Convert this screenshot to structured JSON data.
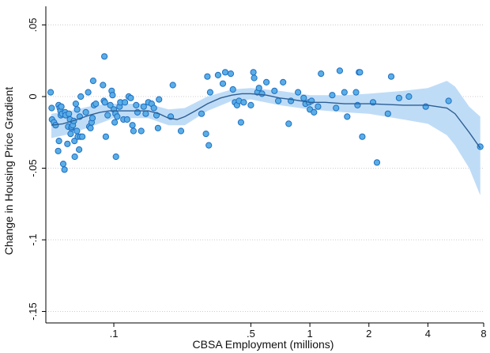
{
  "chart_data": {
    "type": "scatter",
    "xlabel": "CBSA Employment (millions)",
    "ylabel": "Change in Housing Price Gradient",
    "x_scale": "log",
    "xlim": [
      0.045,
      7.7
    ],
    "ylim": [
      -0.158,
      0.063
    ],
    "x_ticks": [
      {
        "value": 0.1,
        "label": ".1"
      },
      {
        "value": 0.5,
        "label": ".5"
      },
      {
        "value": 1,
        "label": "1"
      },
      {
        "value": 2,
        "label": "2"
      },
      {
        "value": 4,
        "label": "4"
      },
      {
        "value": 8,
        "label": "8"
      }
    ],
    "y_ticks": [
      {
        "value": 0.05,
        "label": ".05"
      },
      {
        "value": 0,
        "label": "0"
      },
      {
        "value": -0.05,
        "label": "-.05"
      },
      {
        "value": -0.1,
        "label": "-.1"
      },
      {
        "value": -0.15,
        "label": "-.15"
      }
    ],
    "grid": true,
    "legend": "none",
    "colors": {
      "points_fill": "#5aaee6",
      "points_stroke": "#1f6fc2",
      "fit_line": "#2e5f93",
      "ci_band": "#bfdcf7",
      "grid": "#cccccc",
      "axis": "#000000"
    },
    "points": [
      [
        0.0476,
        0.003
      ],
      [
        0.0482,
        -0.008
      ],
      [
        0.0484,
        -0.016
      ],
      [
        0.0495,
        -0.018
      ],
      [
        0.0505,
        -0.02
      ],
      [
        0.052,
        -0.038
      ],
      [
        0.0523,
        -0.006
      ],
      [
        0.0525,
        -0.031
      ],
      [
        0.053,
        -0.008
      ],
      [
        0.0535,
        -0.01
      ],
      [
        0.0537,
        -0.013
      ],
      [
        0.054,
        -0.007
      ],
      [
        0.0545,
        -0.012
      ],
      [
        0.0552,
        -0.047
      ],
      [
        0.056,
        -0.051
      ],
      [
        0.0565,
        -0.011
      ],
      [
        0.0568,
        -0.013
      ],
      [
        0.058,
        -0.033
      ],
      [
        0.0585,
        -0.021
      ],
      [
        0.059,
        -0.012
      ],
      [
        0.0598,
        -0.016
      ],
      [
        0.0602,
        -0.026
      ],
      [
        0.0608,
        -0.022
      ],
      [
        0.061,
        -0.021
      ],
      [
        0.0618,
        -0.02
      ],
      [
        0.0625,
        -0.017
      ],
      [
        0.063,
        -0.031
      ],
      [
        0.0632,
        -0.042
      ],
      [
        0.064,
        -0.005
      ],
      [
        0.0648,
        -0.024
      ],
      [
        0.065,
        -0.009
      ],
      [
        0.0655,
        -0.028
      ],
      [
        0.0665,
        -0.037
      ],
      [
        0.067,
        -0.014
      ],
      [
        0.0675,
        -0.028
      ],
      [
        0.0678,
        0.0
      ],
      [
        0.069,
        -0.028
      ],
      [
        0.072,
        -0.011
      ],
      [
        0.074,
        0.003
      ],
      [
        0.075,
        -0.021
      ],
      [
        0.076,
        -0.022
      ],
      [
        0.077,
        -0.018
      ],
      [
        0.0778,
        -0.015
      ],
      [
        0.0785,
        0.011
      ],
      [
        0.0792,
        -0.006
      ],
      [
        0.081,
        -0.005
      ],
      [
        0.088,
        0.008
      ],
      [
        0.089,
        -0.003
      ],
      [
        0.0895,
        0.028
      ],
      [
        0.09,
        -0.004
      ],
      [
        0.091,
        -0.028
      ],
      [
        0.093,
        -0.013
      ],
      [
        0.096,
        -0.006
      ],
      [
        0.0975,
        0.004
      ],
      [
        0.0985,
        0.001
      ],
      [
        0.1,
        -0.009
      ],
      [
        0.101,
        -0.018
      ],
      [
        0.102,
        -0.012
      ],
      [
        0.1025,
        -0.042
      ],
      [
        0.104,
        -0.014
      ],
      [
        0.107,
        -0.007
      ],
      [
        0.108,
        -0.004
      ],
      [
        0.112,
        -0.016
      ],
      [
        0.114,
        -0.004
      ],
      [
        0.117,
        -0.016
      ],
      [
        0.119,
        0.0
      ],
      [
        0.122,
        -0.001
      ],
      [
        0.1245,
        -0.02
      ],
      [
        0.126,
        -0.024
      ],
      [
        0.13,
        -0.006
      ],
      [
        0.132,
        -0.011
      ],
      [
        0.138,
        -0.024
      ],
      [
        0.142,
        -0.007
      ],
      [
        0.1455,
        -0.012
      ],
      [
        0.15,
        -0.004
      ],
      [
        0.156,
        -0.005
      ],
      [
        0.16,
        -0.008
      ],
      [
        0.165,
        -0.013
      ],
      [
        0.168,
        -0.022
      ],
      [
        0.17,
        -0.002
      ],
      [
        0.195,
        -0.014
      ],
      [
        0.2,
        0.008
      ],
      [
        0.22,
        -0.024
      ],
      [
        0.28,
        -0.012
      ],
      [
        0.295,
        -0.026
      ],
      [
        0.3,
        0.014
      ],
      [
        0.305,
        -0.034
      ],
      [
        0.31,
        0.003
      ],
      [
        0.34,
        0.015
      ],
      [
        0.36,
        0.009
      ],
      [
        0.37,
        0.017
      ],
      [
        0.395,
        0.016
      ],
      [
        0.405,
        0.005
      ],
      [
        0.415,
        -0.004
      ],
      [
        0.425,
        -0.006
      ],
      [
        0.435,
        -0.003
      ],
      [
        0.445,
        -0.018
      ],
      [
        0.46,
        -0.004
      ],
      [
        0.5,
        -0.006
      ],
      [
        0.515,
        0.017
      ],
      [
        0.52,
        0.013
      ],
      [
        0.54,
        0.003
      ],
      [
        0.55,
        0.006
      ],
      [
        0.57,
        0.002
      ],
      [
        0.6,
        0.01
      ],
      [
        0.66,
        0.004
      ],
      [
        0.69,
        -0.003
      ],
      [
        0.73,
        0.01
      ],
      [
        0.78,
        -0.019
      ],
      [
        0.8,
        -0.003
      ],
      [
        0.87,
        0.003
      ],
      [
        0.93,
        -0.001
      ],
      [
        0.95,
        -0.005
      ],
      [
        0.99,
        -0.004
      ],
      [
        1.0,
        -0.009
      ],
      [
        1.02,
        -0.003
      ],
      [
        1.05,
        -0.011
      ],
      [
        1.1,
        -0.007
      ],
      [
        1.14,
        0.016
      ],
      [
        1.3,
        0.001
      ],
      [
        1.36,
        -0.008
      ],
      [
        1.42,
        0.018
      ],
      [
        1.5,
        0.003
      ],
      [
        1.55,
        -0.014
      ],
      [
        1.72,
        0.003
      ],
      [
        1.75,
        -0.006
      ],
      [
        1.78,
        0.017
      ],
      [
        1.8,
        0.017
      ],
      [
        1.85,
        -0.028
      ],
      [
        2.1,
        -0.004
      ],
      [
        2.2,
        -0.046
      ],
      [
        2.5,
        -0.012
      ],
      [
        2.6,
        0.014
      ],
      [
        2.85,
        -0.001
      ],
      [
        3.2,
        0.0
      ],
      [
        3.9,
        -0.007
      ],
      [
        5.1,
        -0.003
      ],
      [
        7.4,
        -0.035
      ]
    ],
    "fit_line": [
      [
        0.048,
        -0.02
      ],
      [
        0.055,
        -0.019
      ],
      [
        0.065,
        -0.016
      ],
      [
        0.075,
        -0.013
      ],
      [
        0.085,
        -0.011
      ],
      [
        0.095,
        -0.01
      ],
      [
        0.105,
        -0.01
      ],
      [
        0.115,
        -0.01
      ],
      [
        0.13,
        -0.01
      ],
      [
        0.15,
        -0.01
      ],
      [
        0.17,
        -0.012
      ],
      [
        0.19,
        -0.015
      ],
      [
        0.21,
        -0.016
      ],
      [
        0.23,
        -0.014
      ],
      [
        0.26,
        -0.01
      ],
      [
        0.3,
        -0.005
      ],
      [
        0.35,
        -0.001
      ],
      [
        0.4,
        0.001
      ],
      [
        0.45,
        0.002
      ],
      [
        0.5,
        0.002
      ],
      [
        0.6,
        0.001
      ],
      [
        0.7,
        -0.001
      ],
      [
        0.8,
        -0.002
      ],
      [
        0.9,
        -0.003
      ],
      [
        1.0,
        -0.004
      ],
      [
        1.2,
        -0.004
      ],
      [
        1.5,
        -0.005
      ],
      [
        2.0,
        -0.005
      ],
      [
        3.0,
        -0.006
      ],
      [
        4.0,
        -0.006
      ],
      [
        5.0,
        -0.008
      ],
      [
        5.5,
        -0.012
      ],
      [
        6.5,
        -0.025
      ],
      [
        7.4,
        -0.036
      ]
    ],
    "ci_upper": [
      [
        0.048,
        -0.012
      ],
      [
        0.06,
        -0.01
      ],
      [
        0.08,
        -0.006
      ],
      [
        0.1,
        -0.005
      ],
      [
        0.15,
        -0.005
      ],
      [
        0.19,
        -0.009
      ],
      [
        0.23,
        -0.008
      ],
      [
        0.3,
        0.0
      ],
      [
        0.4,
        0.005
      ],
      [
        0.5,
        0.006
      ],
      [
        0.7,
        0.004
      ],
      [
        1.0,
        0.001
      ],
      [
        1.5,
        0.001
      ],
      [
        2.0,
        0.002
      ],
      [
        3.0,
        0.004
      ],
      [
        4.0,
        0.006
      ],
      [
        5.0,
        0.011
      ],
      [
        5.5,
        0.007
      ],
      [
        6.5,
        -0.007
      ],
      [
        7.4,
        -0.014
      ]
    ],
    "ci_lower": [
      [
        0.048,
        -0.029
      ],
      [
        0.06,
        -0.026
      ],
      [
        0.08,
        -0.02
      ],
      [
        0.1,
        -0.015
      ],
      [
        0.15,
        -0.015
      ],
      [
        0.19,
        -0.02
      ],
      [
        0.23,
        -0.02
      ],
      [
        0.3,
        -0.01
      ],
      [
        0.4,
        -0.003
      ],
      [
        0.5,
        -0.002
      ],
      [
        0.7,
        -0.006
      ],
      [
        1.0,
        -0.009
      ],
      [
        1.5,
        -0.011
      ],
      [
        2.0,
        -0.012
      ],
      [
        3.0,
        -0.016
      ],
      [
        4.0,
        -0.019
      ],
      [
        5.0,
        -0.027
      ],
      [
        5.5,
        -0.034
      ],
      [
        6.5,
        -0.05
      ],
      [
        7.4,
        -0.069
      ]
    ]
  }
}
